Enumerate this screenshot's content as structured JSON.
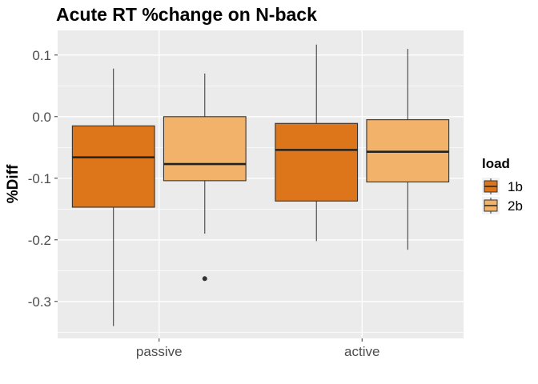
{
  "chart_data": {
    "type": "boxplot",
    "title": "Acute RT %change on N-back",
    "xlabel": "",
    "ylabel": "%Diff",
    "categories": [
      "passive",
      "active"
    ],
    "ylim": [
      -0.36,
      0.14
    ],
    "yticks": [
      0.1,
      0.0,
      -0.1,
      -0.2,
      -0.3
    ],
    "ytick_labels": [
      "0.1",
      "0.0",
      "-0.1",
      "-0.2",
      "-0.3"
    ],
    "grid": true,
    "legend": {
      "title": "load",
      "position": "right"
    },
    "series": [
      {
        "name": "1b",
        "color": "#dd751b",
        "boxes": [
          {
            "category": "passive",
            "whisker_low": -0.34,
            "q1": -0.147,
            "median": -0.066,
            "q3": -0.015,
            "whisker_high": 0.078,
            "outliers": []
          },
          {
            "category": "active",
            "whisker_low": -0.202,
            "q1": -0.137,
            "median": -0.054,
            "q3": -0.011,
            "whisker_high": 0.117,
            "outliers": []
          }
        ]
      },
      {
        "name": "2b",
        "color": "#f2b26a",
        "boxes": [
          {
            "category": "passive",
            "whisker_low": -0.19,
            "q1": -0.104,
            "median": -0.077,
            "q3": 0.0,
            "whisker_high": 0.07,
            "outliers": [
              -0.263
            ]
          },
          {
            "category": "active",
            "whisker_low": -0.216,
            "q1": -0.106,
            "median": -0.057,
            "q3": -0.005,
            "whisker_high": 0.11,
            "outliers": []
          }
        ]
      }
    ]
  }
}
